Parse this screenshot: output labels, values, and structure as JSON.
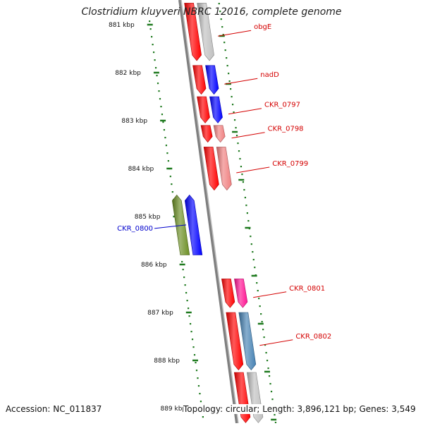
{
  "title": "Clostridium kluyveri NBRC 12016, complete genome",
  "footer": {
    "accession": "Accession: NC_011837",
    "topology": "Topology: circular; Length: 3,896,121 bp; Genes: 3,549"
  },
  "colors": {
    "ruler": "#1f7a1f",
    "backbone": "#7f7f7f",
    "label_red": "#d40000",
    "label_blue": "#0000cc"
  },
  "ruler_ticks": [
    "881 kbp",
    "882 kbp",
    "883 kbp",
    "884 kbp",
    "885 kbp",
    "886 kbp",
    "887 kbp",
    "888 kbp",
    "889 kbp"
  ],
  "genes": [
    {
      "label": "obgE",
      "strand": "+",
      "start_kbp": 880.55,
      "end_kbp": 881.75,
      "color": "#ff0000",
      "partner_color": "#c0c0c0",
      "label_color": "red"
    },
    {
      "label": "nadD",
      "strand": "+",
      "start_kbp": 881.85,
      "end_kbp": 882.45,
      "color": "#ff0000",
      "partner_color": "#0000ff",
      "label_color": "red"
    },
    {
      "label": "CKR_0797",
      "strand": "+",
      "start_kbp": 882.5,
      "end_kbp": 883.05,
      "color": "#ff0000",
      "partner_color": "#0000ff",
      "label_color": "red"
    },
    {
      "label": "CKR_0798",
      "strand": "+",
      "start_kbp": 883.1,
      "end_kbp": 883.45,
      "color": "#ff0000",
      "partner_color": "#f08080",
      "label_color": "red"
    },
    {
      "label": "CKR_0799",
      "strand": "+",
      "start_kbp": 883.55,
      "end_kbp": 884.45,
      "color": "#ff0000",
      "partner_color": "#f08080",
      "label_color": "red"
    },
    {
      "label": "CKR_0800",
      "strand": "-",
      "start_kbp": 884.55,
      "end_kbp": 885.8,
      "color": "#0000ff",
      "partner_color": "#6b8e23",
      "label_color": "blue"
    },
    {
      "label": "CKR_0801",
      "strand": "+",
      "start_kbp": 886.3,
      "end_kbp": 886.9,
      "color": "#ff0000",
      "partner_color": "#ff1493",
      "label_color": "red"
    },
    {
      "label": "CKR_0802",
      "strand": "+",
      "start_kbp": 887.0,
      "end_kbp": 888.2,
      "color": "#ff0000",
      "partner_color": "#4682b4",
      "label_color": "red"
    },
    {
      "label": "",
      "strand": "+",
      "start_kbp": 888.25,
      "end_kbp": 889.3,
      "color": "#ff0000",
      "partner_color": "#c0c0c0",
      "label_color": "red"
    }
  ]
}
